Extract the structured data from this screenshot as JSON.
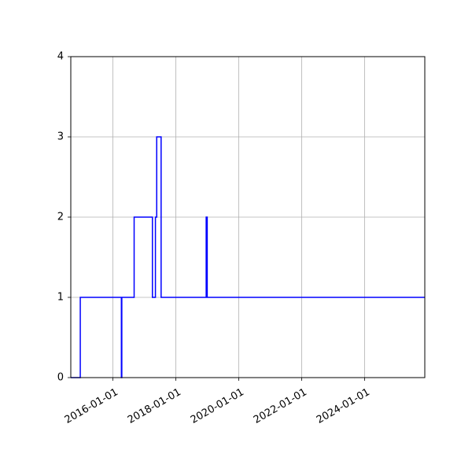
{
  "chart_data": {
    "type": "line",
    "title": "",
    "xlabel": "",
    "ylabel": "",
    "x_axis_type": "date",
    "xlim": [
      "2014-09-01",
      "2025-11-30"
    ],
    "ylim": [
      0,
      4
    ],
    "x_ticks": [
      "2016-01-01",
      "2018-01-01",
      "2020-01-01",
      "2022-01-01",
      "2024-01-01"
    ],
    "y_ticks": [
      0,
      1,
      2,
      3,
      4
    ],
    "x_tick_rotation": 30,
    "grid": true,
    "legend": "none",
    "series": [
      {
        "color": "#0000ff",
        "step": "post",
        "points": [
          [
            "2014-09-01",
            0
          ],
          [
            "2014-12-20",
            1
          ],
          [
            "2016-04-10",
            0
          ],
          [
            "2016-04-15",
            1
          ],
          [
            "2016-09-05",
            2
          ],
          [
            "2017-04-05",
            1
          ],
          [
            "2017-05-10",
            2
          ],
          [
            "2017-05-25",
            3
          ],
          [
            "2017-07-15",
            1
          ],
          [
            "2018-12-20",
            2
          ],
          [
            "2019-01-01",
            1
          ],
          [
            "2025-11-30",
            1
          ]
        ]
      }
    ]
  }
}
